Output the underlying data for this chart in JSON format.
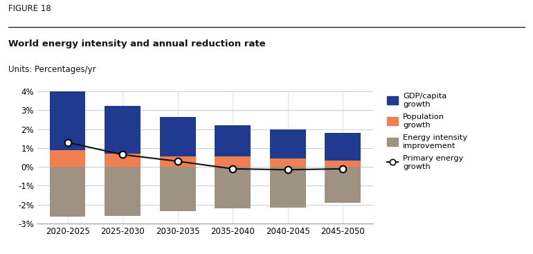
{
  "categories": [
    "2020-2025",
    "2025-2030",
    "2030-2035",
    "2035-2040",
    "2040-2045",
    "2045-2050"
  ],
  "gdp_per_capita": [
    3.1,
    2.55,
    2.1,
    1.65,
    1.55,
    1.45
  ],
  "population": [
    0.9,
    0.7,
    0.55,
    0.55,
    0.45,
    0.35
  ],
  "energy_intensity": [
    -2.65,
    -2.6,
    -2.35,
    -2.2,
    -2.15,
    -1.9
  ],
  "primary_energy_growth": [
    1.3,
    0.65,
    0.3,
    -0.1,
    -0.15,
    -0.1
  ],
  "colors": {
    "gdp": "#1f3a8f",
    "population": "#f08050",
    "energy_intensity": "#9e9282",
    "line": "#111111"
  },
  "figure_label": "FIGURE 18",
  "title": "World energy intensity and annual reduction rate",
  "units_label": "Units: Percentages/yr",
  "ylim": [
    -3,
    4
  ],
  "yticks": [
    -3,
    -2,
    -1,
    0,
    1,
    2,
    3,
    4
  ],
  "ytick_labels": [
    "-3%",
    "-2%",
    "-1%",
    "0%",
    "1%",
    "2%",
    "3%",
    "4%"
  ],
  "legend": {
    "gdp_label": "GDP/capita\ngrowth",
    "population_label": "Population\ngrowth",
    "energy_label": "Energy intensity\nimprovement",
    "line_label": "Primary energy\ngrowth"
  },
  "background_color": "#ffffff",
  "bar_width": 0.65
}
